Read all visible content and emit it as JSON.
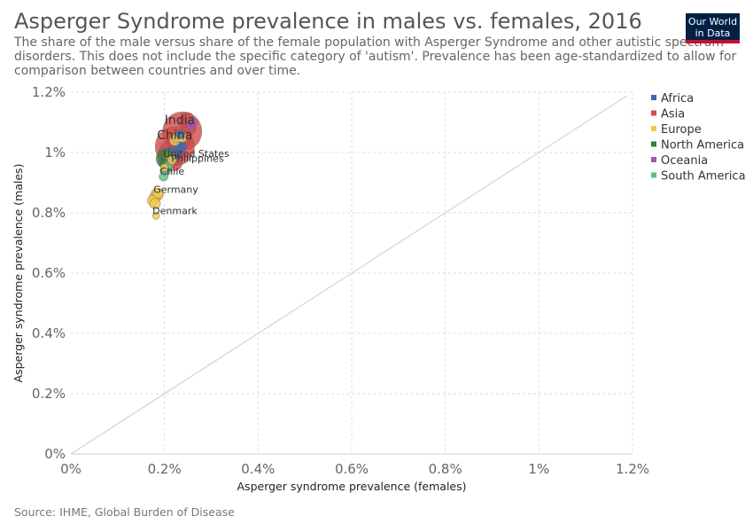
{
  "header": {
    "title": "Asperger Syndrome prevalence in males vs. females, 2016",
    "subtitle": "The share of the male versus share of the female population with Asperger Syndrome and other autistic spectrum disorders. This does not include the specific category of 'autism'. Prevalence has been age-standardized to allow for comparison between countries and over time."
  },
  "logo": {
    "line1": "Our World",
    "line2": "in Data"
  },
  "source": "Source: IHME, Global Burden of Disease",
  "chart_data": {
    "type": "scatter",
    "title": "Asperger Syndrome prevalence in males vs. females, 2016",
    "xlabel": "Asperger syndrome prevalence (females)",
    "ylabel": "Asperger syndrome prevalence (males)",
    "xlim": [
      0,
      1.2
    ],
    "ylim": [
      0,
      1.2
    ],
    "x_ticks": [
      {
        "value": 0,
        "label": "0%"
      },
      {
        "value": 0.2,
        "label": "0.2%"
      },
      {
        "value": 0.4,
        "label": "0.4%"
      },
      {
        "value": 0.6,
        "label": "0.6%"
      },
      {
        "value": 0.8,
        "label": "0.8%"
      },
      {
        "value": 1.0,
        "label": "1%"
      },
      {
        "value": 1.2,
        "label": "1.2%"
      }
    ],
    "y_ticks": [
      {
        "value": 0,
        "label": "0%"
      },
      {
        "value": 0.2,
        "label": "0.2%"
      },
      {
        "value": 0.4,
        "label": "0.4%"
      },
      {
        "value": 0.6,
        "label": "0.6%"
      },
      {
        "value": 0.8,
        "label": "0.8%"
      },
      {
        "value": 1.0,
        "label": "1%"
      },
      {
        "value": 1.2,
        "label": "1.2%"
      }
    ],
    "grid": true,
    "diagonal_reference_line": true,
    "legend_position": "right",
    "legend": [
      {
        "name": "Africa",
        "color": "#3c6bb4"
      },
      {
        "name": "Asia",
        "color": "#d64a4a"
      },
      {
        "name": "Europe",
        "color": "#f2c94c"
      },
      {
        "name": "North America",
        "color": "#3b7a3b"
      },
      {
        "name": "Oceania",
        "color": "#a652ba"
      },
      {
        "name": "South America",
        "color": "#5fbf7f"
      }
    ],
    "points": [
      {
        "label": "India",
        "x": 0.238,
        "y": 1.07,
        "region": "Asia",
        "size": 1.0
      },
      {
        "label": "China",
        "x": 0.222,
        "y": 1.02,
        "region": "Asia",
        "size": 1.0
      },
      {
        "label": "",
        "x": 0.212,
        "y": 1.0,
        "region": "Asia",
        "size": 0.55
      },
      {
        "label": "",
        "x": 0.232,
        "y": 1.04,
        "region": "Asia",
        "size": 0.45
      },
      {
        "label": "",
        "x": 0.248,
        "y": 1.11,
        "region": "Asia",
        "size": 0.3
      },
      {
        "label": "",
        "x": 0.252,
        "y": 1.08,
        "region": "Asia",
        "size": 0.3
      },
      {
        "label": "",
        "x": 0.245,
        "y": 1.05,
        "region": "Asia",
        "size": 0.25
      },
      {
        "label": "",
        "x": 0.228,
        "y": 0.99,
        "region": "Asia",
        "size": 0.3
      },
      {
        "label": "",
        "x": 0.215,
        "y": 0.97,
        "region": "Asia",
        "size": 0.25
      },
      {
        "label": "",
        "x": 0.205,
        "y": 0.96,
        "region": "Asia",
        "size": 0.2
      },
      {
        "label": "",
        "x": 0.218,
        "y": 1.03,
        "region": "Asia",
        "size": 0.2
      },
      {
        "label": "",
        "x": 0.24,
        "y": 1.1,
        "region": "Asia",
        "size": 0.2
      },
      {
        "label": "",
        "x": 0.226,
        "y": 1.01,
        "region": "Africa",
        "size": 0.35
      },
      {
        "label": "",
        "x": 0.22,
        "y": 0.99,
        "region": "Africa",
        "size": 0.3
      },
      {
        "label": "",
        "x": 0.215,
        "y": 1.0,
        "region": "Africa",
        "size": 0.25
      },
      {
        "label": "",
        "x": 0.229,
        "y": 1.03,
        "region": "Africa",
        "size": 0.2
      },
      {
        "label": "",
        "x": 0.236,
        "y": 1.02,
        "region": "Africa",
        "size": 0.2
      },
      {
        "label": "",
        "x": 0.218,
        "y": 0.98,
        "region": "Africa",
        "size": 0.15
      },
      {
        "label": "",
        "x": 0.234,
        "y": 1.06,
        "region": "Africa",
        "size": 0.15
      },
      {
        "label": "United States",
        "x": 0.205,
        "y": 0.98,
        "region": "North America",
        "size": 0.5
      },
      {
        "label": "",
        "x": 0.2,
        "y": 0.97,
        "region": "North America",
        "size": 0.2
      },
      {
        "label": "",
        "x": 0.21,
        "y": 0.995,
        "region": "North America",
        "size": 0.15
      },
      {
        "label": "Philippines",
        "x": 0.222,
        "y": 0.963,
        "region": "Asia",
        "size": 0.3
      },
      {
        "label": "Chile",
        "x": 0.198,
        "y": 0.92,
        "region": "South America",
        "size": 0.15
      },
      {
        "label": "",
        "x": 0.202,
        "y": 0.94,
        "region": "South America",
        "size": 0.2
      },
      {
        "label": "",
        "x": 0.206,
        "y": 0.95,
        "region": "South America",
        "size": 0.15
      },
      {
        "label": "",
        "x": 0.21,
        "y": 0.96,
        "region": "South America",
        "size": 0.15
      },
      {
        "label": "",
        "x": 0.257,
        "y": 1.09,
        "region": "Oceania",
        "size": 0.15
      },
      {
        "label": "",
        "x": 0.262,
        "y": 1.1,
        "region": "Oceania",
        "size": 0.12
      },
      {
        "label": "",
        "x": 0.222,
        "y": 1.04,
        "region": "Europe",
        "size": 0.2
      },
      {
        "label": "",
        "x": 0.228,
        "y": 1.05,
        "region": "Europe",
        "size": 0.18
      },
      {
        "label": "",
        "x": 0.238,
        "y": 1.05,
        "region": "Europe",
        "size": 0.18
      },
      {
        "label": "",
        "x": 0.212,
        "y": 0.99,
        "region": "Europe",
        "size": 0.18
      },
      {
        "label": "",
        "x": 0.216,
        "y": 0.975,
        "region": "Europe",
        "size": 0.15
      },
      {
        "label": "",
        "x": 0.2,
        "y": 0.95,
        "region": "Europe",
        "size": 0.12
      },
      {
        "label": "Germany",
        "x": 0.184,
        "y": 0.86,
        "region": "Europe",
        "size": 0.25
      },
      {
        "label": "",
        "x": 0.179,
        "y": 0.85,
        "region": "Europe",
        "size": 0.2
      },
      {
        "label": "",
        "x": 0.175,
        "y": 0.84,
        "region": "Europe",
        "size": 0.2
      },
      {
        "label": "",
        "x": 0.18,
        "y": 0.83,
        "region": "Europe",
        "size": 0.2
      },
      {
        "label": "",
        "x": 0.186,
        "y": 0.865,
        "region": "Europe",
        "size": 0.18
      },
      {
        "label": "Denmark",
        "x": 0.182,
        "y": 0.79,
        "region": "Europe",
        "size": 0.1
      }
    ]
  }
}
